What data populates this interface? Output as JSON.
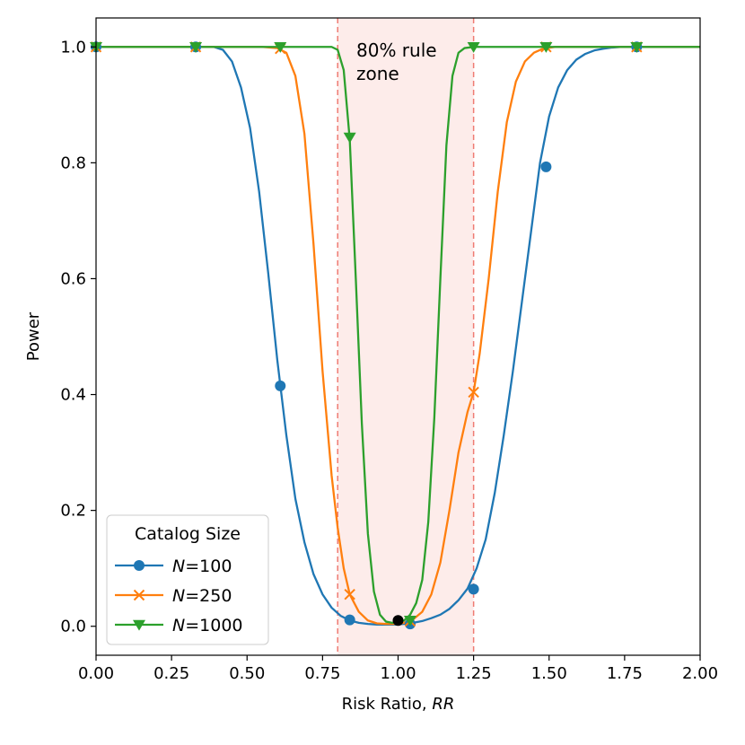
{
  "chart_data": {
    "type": "line",
    "title": "",
    "xlabel_prefix": "Risk Ratio, ",
    "xlabel_var": "RR",
    "ylabel": "Power",
    "xlim": [
      0.0,
      2.0
    ],
    "ylim": [
      -0.05,
      1.05
    ],
    "xticks": [
      0.0,
      0.25,
      0.5,
      0.75,
      1.0,
      1.25,
      1.5,
      1.75,
      2.0
    ],
    "xtick_labels": [
      "0.00",
      "0.25",
      "0.50",
      "0.75",
      "1.00",
      "1.25",
      "1.50",
      "1.75",
      "2.00"
    ],
    "yticks": [
      0.0,
      0.2,
      0.4,
      0.6,
      0.8,
      1.0
    ],
    "ytick_labels": [
      "0.0",
      "0.2",
      "0.4",
      "0.6",
      "0.8",
      "1.0"
    ],
    "zone": {
      "x_start": 0.8,
      "x_end": 1.25,
      "label_line1": "80% rule",
      "label_line2": "zone",
      "fill_color": "#fdecea",
      "line_color": "#ef7b73"
    },
    "reference_point": {
      "x": 1.0,
      "y": 0.01,
      "color": "#000000"
    },
    "legend": {
      "title": "Catalog Size",
      "location": "lower-left",
      "var_label": "N"
    },
    "series": [
      {
        "name": "N=100",
        "n_value": "100",
        "color": "#1f77b4",
        "marker": "circle",
        "x": [
          0.0,
          0.03,
          0.06,
          0.09,
          0.12,
          0.15,
          0.18,
          0.21,
          0.24,
          0.27,
          0.3,
          0.33,
          0.36,
          0.39,
          0.42,
          0.45,
          0.48,
          0.51,
          0.54,
          0.57,
          0.6,
          0.63,
          0.66,
          0.69,
          0.72,
          0.75,
          0.78,
          0.81,
          0.84,
          0.87,
          0.9,
          0.93,
          0.96,
          0.99,
          1.02,
          1.05,
          1.08,
          1.11,
          1.14,
          1.17,
          1.2,
          1.23,
          1.26,
          1.29,
          1.32,
          1.35,
          1.38,
          1.41,
          1.44,
          1.47,
          1.5,
          1.53,
          1.56,
          1.59,
          1.62,
          1.65,
          1.68,
          1.71,
          1.74,
          1.77,
          1.8,
          1.83,
          1.86,
          1.89,
          1.92,
          1.95,
          1.98,
          2.0
        ],
        "y": [
          1.0,
          1.0,
          1.0,
          1.0,
          1.0,
          1.0,
          1.0,
          1.0,
          1.0,
          1.0,
          1.0,
          1.0,
          1.0,
          1.0,
          0.995,
          0.975,
          0.93,
          0.86,
          0.75,
          0.61,
          0.46,
          0.33,
          0.22,
          0.145,
          0.09,
          0.055,
          0.032,
          0.018,
          0.01,
          0.006,
          0.004,
          0.003,
          0.003,
          0.003,
          0.004,
          0.006,
          0.009,
          0.014,
          0.02,
          0.03,
          0.045,
          0.065,
          0.1,
          0.15,
          0.23,
          0.33,
          0.44,
          0.56,
          0.68,
          0.8,
          0.88,
          0.93,
          0.96,
          0.978,
          0.988,
          0.994,
          0.997,
          0.999,
          1.0,
          1.0,
          1.0,
          1.0,
          1.0,
          1.0,
          1.0,
          1.0,
          1.0,
          1.0
        ],
        "markers": [
          [
            0.0,
            1.0
          ],
          [
            0.33,
            1.0
          ],
          [
            0.61,
            0.415
          ],
          [
            0.84,
            0.011
          ],
          [
            1.04,
            0.004
          ],
          [
            1.25,
            0.064
          ],
          [
            1.49,
            0.793
          ],
          [
            1.79,
            1.0
          ]
        ]
      },
      {
        "name": "N=250",
        "n_value": "250",
        "color": "#ff7f0e",
        "marker": "x",
        "x": [
          0.0,
          0.05,
          0.1,
          0.15,
          0.2,
          0.25,
          0.3,
          0.35,
          0.4,
          0.45,
          0.5,
          0.55,
          0.6,
          0.63,
          0.66,
          0.69,
          0.72,
          0.75,
          0.78,
          0.8,
          0.82,
          0.84,
          0.87,
          0.9,
          0.93,
          0.96,
          0.99,
          1.02,
          1.05,
          1.08,
          1.11,
          1.14,
          1.17,
          1.2,
          1.23,
          1.25,
          1.27,
          1.3,
          1.33,
          1.36,
          1.39,
          1.42,
          1.45,
          1.48,
          1.52,
          1.56,
          1.6,
          1.65,
          1.7,
          1.75,
          1.8,
          1.85,
          1.9,
          1.95,
          2.0
        ],
        "y": [
          1.0,
          1.0,
          1.0,
          1.0,
          1.0,
          1.0,
          1.0,
          1.0,
          1.0,
          1.0,
          1.0,
          1.0,
          0.998,
          0.99,
          0.95,
          0.85,
          0.66,
          0.44,
          0.26,
          0.17,
          0.1,
          0.055,
          0.025,
          0.01,
          0.005,
          0.004,
          0.004,
          0.006,
          0.012,
          0.025,
          0.055,
          0.11,
          0.2,
          0.3,
          0.37,
          0.404,
          0.47,
          0.6,
          0.75,
          0.87,
          0.94,
          0.975,
          0.99,
          0.997,
          1.0,
          1.0,
          1.0,
          1.0,
          1.0,
          1.0,
          1.0,
          1.0,
          1.0,
          1.0,
          1.0
        ],
        "markers": [
          [
            0.0,
            1.0
          ],
          [
            0.33,
            1.0
          ],
          [
            0.61,
            0.997
          ],
          [
            0.84,
            0.055
          ],
          [
            1.04,
            0.009
          ],
          [
            1.25,
            0.404
          ],
          [
            1.49,
            1.0
          ],
          [
            1.79,
            1.0
          ]
        ]
      },
      {
        "name": "N=1000",
        "n_value": "1000",
        "color": "#2ca02c",
        "marker": "triangle-down",
        "x": [
          0.0,
          0.1,
          0.2,
          0.3,
          0.4,
          0.5,
          0.6,
          0.65,
          0.7,
          0.75,
          0.78,
          0.8,
          0.82,
          0.84,
          0.86,
          0.88,
          0.9,
          0.92,
          0.94,
          0.96,
          0.98,
          1.0,
          1.02,
          1.04,
          1.06,
          1.08,
          1.1,
          1.12,
          1.14,
          1.16,
          1.18,
          1.2,
          1.22,
          1.25,
          1.3,
          1.4,
          1.5,
          1.6,
          1.7,
          1.8,
          1.9,
          2.0
        ],
        "y": [
          1.0,
          1.0,
          1.0,
          1.0,
          1.0,
          1.0,
          1.0,
          1.0,
          1.0,
          1.0,
          1.0,
          0.995,
          0.96,
          0.84,
          0.6,
          0.35,
          0.16,
          0.06,
          0.02,
          0.008,
          0.006,
          0.007,
          0.01,
          0.02,
          0.04,
          0.08,
          0.18,
          0.36,
          0.6,
          0.83,
          0.95,
          0.99,
          0.998,
          1.0,
          1.0,
          1.0,
          1.0,
          1.0,
          1.0,
          1.0,
          1.0,
          1.0
        ],
        "markers": [
          [
            0.0,
            1.0
          ],
          [
            0.33,
            1.0
          ],
          [
            0.61,
            1.0
          ],
          [
            0.84,
            0.844
          ],
          [
            1.04,
            0.01
          ],
          [
            1.25,
            1.0
          ],
          [
            1.49,
            1.0
          ],
          [
            1.79,
            1.0
          ]
        ]
      }
    ]
  }
}
